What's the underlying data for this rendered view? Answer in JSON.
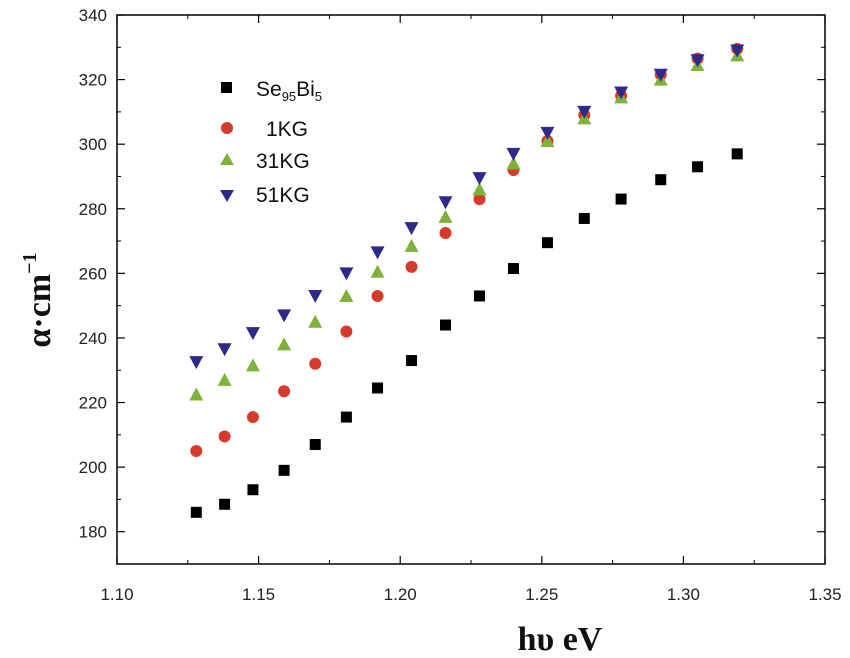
{
  "chart_data": {
    "type": "scatter",
    "title": "",
    "xlabel": "hυ eV",
    "ylabel": "α·cm",
    "ylabel_superscript": "−1",
    "xlim": [
      1.1,
      1.35
    ],
    "ylim": [
      170,
      340
    ],
    "x_ticks": [
      "1.10",
      "1.15",
      "1.20",
      "1.25",
      "1.30",
      "1.35"
    ],
    "y_ticks": [
      "180",
      "200",
      "220",
      "240",
      "260",
      "280",
      "300",
      "320",
      "340"
    ],
    "legend_position": "top-left",
    "series": [
      {
        "name": "Se95Bi5",
        "label_base": "Se",
        "label_sub1": "95",
        "label_mid": "Bi",
        "label_sub2": "5",
        "marker": "square",
        "color": "#000000",
        "x": [
          1.128,
          1.138,
          1.148,
          1.159,
          1.17,
          1.181,
          1.192,
          1.204,
          1.216,
          1.228,
          1.24,
          1.252,
          1.265,
          1.278,
          1.292,
          1.305,
          1.319
        ],
        "y": [
          186,
          188.5,
          193,
          199,
          207,
          215.5,
          224.5,
          233,
          244,
          253,
          261.5,
          269.5,
          277,
          283,
          289,
          293,
          297
        ]
      },
      {
        "name": "1KG",
        "marker": "circle",
        "color": "#d63a2a",
        "x": [
          1.128,
          1.138,
          1.148,
          1.159,
          1.17,
          1.181,
          1.192,
          1.204,
          1.216,
          1.228,
          1.24,
          1.252,
          1.265,
          1.278,
          1.292,
          1.305,
          1.319
        ],
        "y": [
          205,
          209.5,
          215.5,
          223.5,
          232,
          242,
          253,
          262,
          272.5,
          283,
          292,
          301,
          309,
          315,
          321.5,
          326.5,
          329.5
        ]
      },
      {
        "name": "31KG",
        "marker": "triangle-up",
        "color": "#7fb23a",
        "x": [
          1.128,
          1.138,
          1.148,
          1.159,
          1.17,
          1.181,
          1.192,
          1.204,
          1.216,
          1.228,
          1.24,
          1.252,
          1.265,
          1.278,
          1.292,
          1.305,
          1.319
        ],
        "y": [
          222.5,
          227,
          231.5,
          238,
          245,
          253,
          260.5,
          268.5,
          277.5,
          286,
          294,
          301,
          308,
          314.5,
          320,
          324.5,
          327.5
        ]
      },
      {
        "name": "51KG",
        "marker": "triangle-down",
        "color": "#2e2a8c",
        "x": [
          1.128,
          1.138,
          1.148,
          1.159,
          1.17,
          1.181,
          1.192,
          1.204,
          1.216,
          1.228,
          1.24,
          1.252,
          1.265,
          1.278,
          1.292,
          1.305,
          1.319
        ],
        "y": [
          232.5,
          236.5,
          241.5,
          247,
          253,
          260,
          266.5,
          274,
          282,
          289.5,
          297,
          303.5,
          310,
          316,
          321.5,
          326,
          329
        ]
      }
    ]
  }
}
